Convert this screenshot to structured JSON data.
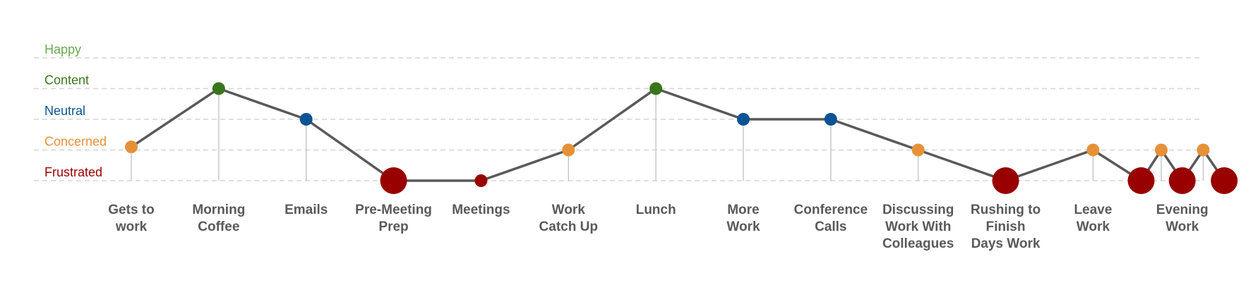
{
  "chart_data": {
    "type": "line",
    "levels": [
      {
        "label": "Happy",
        "value": 5,
        "color": "#6aa84f"
      },
      {
        "label": "Content",
        "value": 4,
        "color": "#38761d"
      },
      {
        "label": "Neutral",
        "value": 3,
        "color": "#0b5394"
      },
      {
        "label": "Concerned",
        "value": 2,
        "color": "#e69138"
      },
      {
        "label": "Frustrated",
        "value": 1,
        "color": "#990000"
      }
    ],
    "ylim": [
      1,
      5
    ],
    "grid": true,
    "line_color": "#595959",
    "points": [
      {
        "x": 1,
        "y": 2.1,
        "category": "Gets to work",
        "lines": [
          "Gets to",
          "work"
        ],
        "level": "Concerned",
        "size": "small"
      },
      {
        "x": 2,
        "y": 4,
        "category": "Morning Coffee",
        "lines": [
          "Morning",
          "Coffee"
        ],
        "level": "Content",
        "size": "small"
      },
      {
        "x": 3,
        "y": 3,
        "category": "Emails",
        "lines": [
          "Emails"
        ],
        "level": "Neutral",
        "size": "small"
      },
      {
        "x": 4,
        "y": 1,
        "category": "Pre-Meeting Prep",
        "lines": [
          "Pre-Meeting",
          "Prep"
        ],
        "level": "Frustrated",
        "size": "large"
      },
      {
        "x": 5,
        "y": 1,
        "category": "Meetings",
        "lines": [
          "Meetings"
        ],
        "level": "Frustrated",
        "size": "small"
      },
      {
        "x": 6,
        "y": 2,
        "category": "Work Catch Up",
        "lines": [
          "Work",
          "Catch Up"
        ],
        "level": "Concerned",
        "size": "small"
      },
      {
        "x": 7,
        "y": 4,
        "category": "Lunch",
        "lines": [
          "Lunch"
        ],
        "level": "Content",
        "size": "small"
      },
      {
        "x": 8,
        "y": 3,
        "category": "More Work",
        "lines": [
          "More",
          "Work"
        ],
        "level": "Neutral",
        "size": "small"
      },
      {
        "x": 9,
        "y": 3,
        "category": "Conference Calls",
        "lines": [
          "Conference",
          "Calls"
        ],
        "level": "Neutral",
        "size": "small"
      },
      {
        "x": 10,
        "y": 2,
        "category": "Discussing Work With Colleagues",
        "lines": [
          "Discussing",
          "Work With",
          "Colleagues"
        ],
        "level": "Concerned",
        "size": "small"
      },
      {
        "x": 11,
        "y": 1,
        "category": "Rushing to Finish Days Work",
        "lines": [
          "Rushing to",
          "Finish",
          "Days Work"
        ],
        "level": "Frustrated",
        "size": "large"
      },
      {
        "x": 12,
        "y": 2,
        "category": "Leave Work",
        "lines": [
          "Leave",
          "Work"
        ],
        "level": "Concerned",
        "size": "small"
      },
      {
        "x": 12.55,
        "y": 1,
        "category": "",
        "lines": [],
        "level": "Frustrated",
        "size": "large"
      },
      {
        "x": 12.78,
        "y": 2,
        "category": "",
        "lines": [],
        "level": "Concerned",
        "size": "small"
      },
      {
        "x": 13.02,
        "y": 1,
        "category": "Evening Work",
        "lines": [
          "Evening",
          "Work"
        ],
        "level": "Frustrated",
        "size": "large"
      },
      {
        "x": 13.26,
        "y": 2,
        "category": "",
        "lines": [],
        "level": "Concerned",
        "size": "small"
      },
      {
        "x": 13.5,
        "y": 1,
        "category": "",
        "lines": [],
        "level": "Frustrated",
        "size": "large"
      }
    ]
  }
}
